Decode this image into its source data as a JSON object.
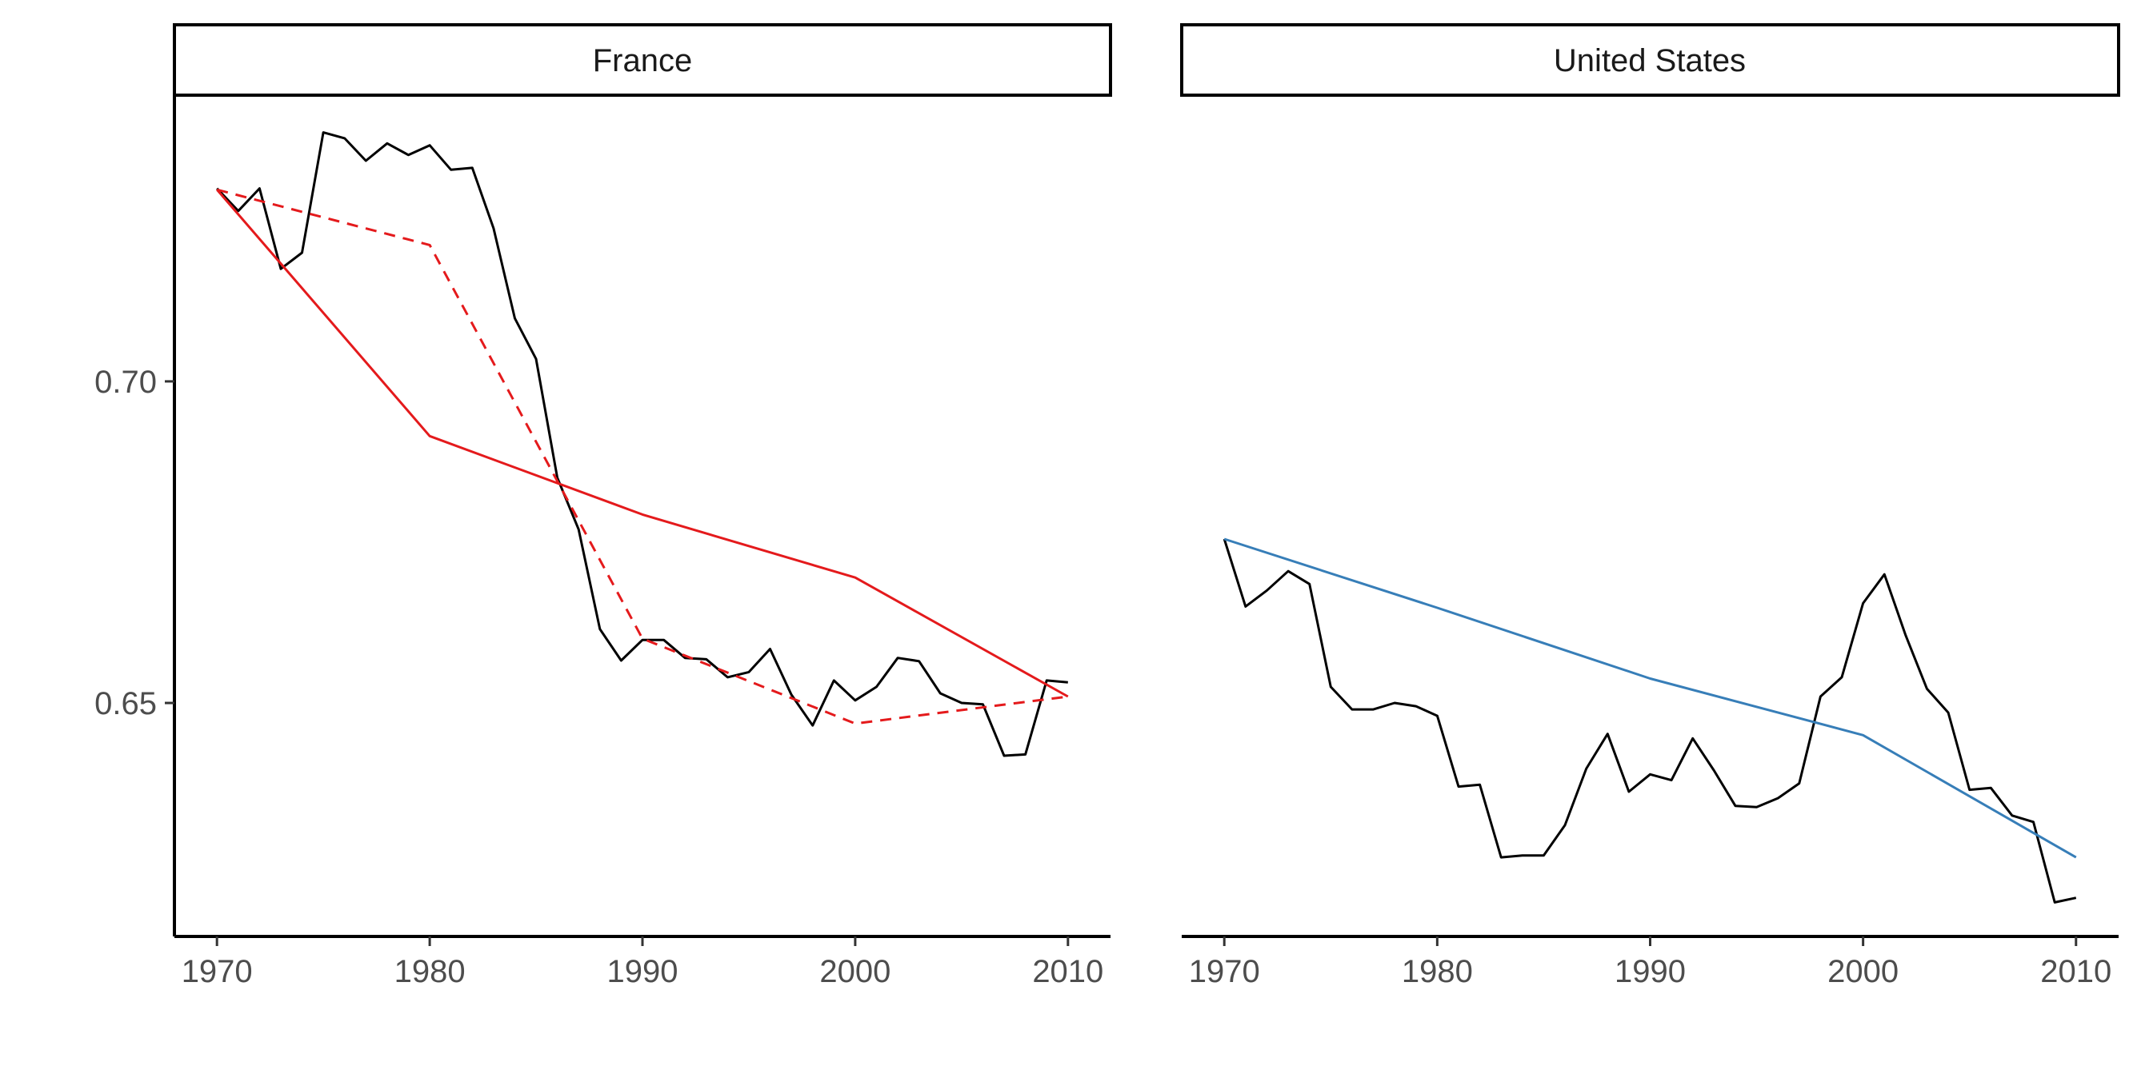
{
  "chart_data": [
    {
      "type": "line",
      "panel_label": "France",
      "xlim": [
        1968,
        2012
      ],
      "ylim": [
        0.6137,
        0.7445
      ],
      "x_ticks": [
        "1970",
        "1980",
        "1990",
        "2000",
        "2010"
      ],
      "y_ticks": [
        "0.65",
        "0.70"
      ],
      "show_y_axis": true,
      "grid": false,
      "series": [
        {
          "style": "solid",
          "color": "#000000",
          "x": [
            1970,
            1971,
            1972,
            1973,
            1974,
            1975,
            1976,
            1977,
            1978,
            1979,
            1980,
            1981,
            1982,
            1983,
            1984,
            1985,
            1986,
            1987,
            1988,
            1989,
            1990,
            1991,
            1992,
            1993,
            1994,
            1995,
            1996,
            1997,
            1998,
            1999,
            2000,
            2001,
            2002,
            2003,
            2004,
            2005,
            2006,
            2007,
            2008,
            2009,
            2010
          ],
          "y": [
            0.73,
            0.7265,
            0.73,
            0.7175,
            0.72,
            0.7387,
            0.7378,
            0.7343,
            0.737,
            0.7352,
            0.7367,
            0.7329,
            0.7332,
            0.7238,
            0.7098,
            0.7035,
            0.685,
            0.677,
            0.6615,
            0.6566,
            0.6598,
            0.6598,
            0.657,
            0.6568,
            0.654,
            0.6548,
            0.6584,
            0.6513,
            0.6465,
            0.6535,
            0.6504,
            0.6525,
            0.657,
            0.6565,
            0.6515,
            0.65,
            0.6498,
            0.6418,
            0.642,
            0.6535,
            0.6532
          ]
        },
        {
          "style": "solid",
          "color": "#e41a1c",
          "x": [
            1970,
            1980,
            1990,
            2000,
            2010
          ],
          "y": [
            0.7298,
            0.6915,
            0.6793,
            0.6695,
            0.651
          ]
        },
        {
          "style": "dashed",
          "color": "#e41a1c",
          "x": [
            1970,
            1980,
            1990,
            2000,
            2010
          ],
          "y": [
            0.7298,
            0.7212,
            0.66,
            0.6468,
            0.651
          ]
        }
      ]
    },
    {
      "type": "line",
      "panel_label": "United States",
      "xlim": [
        1968,
        2012
      ],
      "ylim": [
        0.6137,
        0.7445
      ],
      "x_ticks": [
        "1970",
        "1980",
        "1990",
        "2000",
        "2010"
      ],
      "y_ticks": [],
      "show_y_axis": false,
      "grid": false,
      "series": [
        {
          "style": "solid",
          "color": "#000000",
          "x": [
            1970,
            1971,
            1972,
            1973,
            1974,
            1975,
            1976,
            1977,
            1978,
            1979,
            1980,
            1981,
            1982,
            1983,
            1984,
            1985,
            1986,
            1987,
            1988,
            1989,
            1990,
            1991,
            1992,
            1993,
            1994,
            1995,
            1996,
            1997,
            1998,
            1999,
            2000,
            2001,
            2002,
            2003,
            2004,
            2005,
            2006,
            2007,
            2008,
            2009,
            2010
          ],
          "y": [
            0.6755,
            0.665,
            0.6675,
            0.6705,
            0.6685,
            0.6525,
            0.649,
            0.649,
            0.65,
            0.6495,
            0.648,
            0.637,
            0.6373,
            0.626,
            0.6263,
            0.6263,
            0.631,
            0.6398,
            0.6452,
            0.6362,
            0.6389,
            0.638,
            0.6445,
            0.6395,
            0.634,
            0.6338,
            0.6352,
            0.6375,
            0.651,
            0.654,
            0.6655,
            0.67,
            0.6605,
            0.6522,
            0.6485,
            0.6365,
            0.6368,
            0.6325,
            0.6315,
            0.619,
            0.6197
          ]
        },
        {
          "style": "solid",
          "color": "#377eb8",
          "x": [
            1970,
            1980,
            1990,
            2000,
            2010
          ],
          "y": [
            0.6755,
            0.6648,
            0.6538,
            0.645,
            0.626
          ]
        }
      ]
    }
  ]
}
